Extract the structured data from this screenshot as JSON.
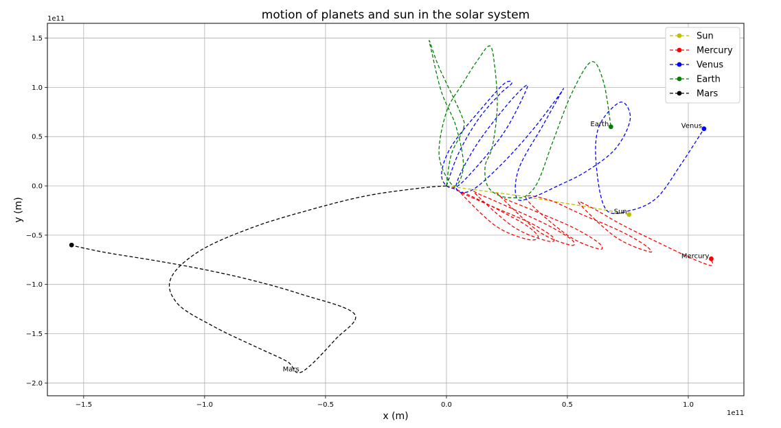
{
  "chart_data": {
    "type": "line",
    "title": "motion of planets and sun in the solar system",
    "xlabel": "x (m)",
    "ylabel": "y (m)",
    "x_offset_text": "1e11",
    "y_offset_text": "1e11",
    "xlim": [
      -1.65,
      1.23
    ],
    "ylim": [
      -2.13,
      1.65
    ],
    "xticks": [
      -1.5,
      -1.0,
      -0.5,
      0.0,
      0.5,
      1.0
    ],
    "xtick_labels": [
      "−1.5",
      "−1.0",
      "−0.5",
      "0.0",
      "0.5",
      "1.0"
    ],
    "yticks": [
      -2.0,
      -1.5,
      -1.0,
      -0.5,
      0.0,
      0.5,
      1.0,
      1.5
    ],
    "ytick_labels": [
      "−2.0",
      "−1.5",
      "−1.0",
      "−0.5",
      "0.0",
      "0.5",
      "1.0",
      "1.5"
    ],
    "grid": true,
    "legend_position": "top-right",
    "series": [
      {
        "name": "Sun",
        "color": "#bfbf00",
        "x": [
          0.0,
          0.15,
          0.3,
          0.45,
          0.6,
          0.755
        ],
        "y": [
          0.0,
          -0.05,
          -0.1,
          -0.16,
          -0.22,
          -0.29
        ]
      },
      {
        "name": "Mercury",
        "color": "#ff0000",
        "x": [
          0.0,
          0.1,
          0.22,
          0.33,
          0.38,
          0.33,
          0.2,
          0.05,
          0.07,
          0.2,
          0.35,
          0.44,
          0.42,
          0.28,
          0.12,
          0.15,
          0.28,
          0.42,
          0.52,
          0.51,
          0.38,
          0.22,
          0.24,
          0.38,
          0.53,
          0.63,
          0.63,
          0.5,
          0.33,
          0.42,
          0.56,
          0.72,
          0.82,
          0.84,
          0.7,
          0.55,
          0.6,
          0.73,
          0.88,
          1.0,
          1.08,
          1.1,
          1.095
        ],
        "y": [
          0.0,
          -0.1,
          -0.25,
          -0.4,
          -0.52,
          -0.54,
          -0.4,
          -0.05,
          -0.08,
          -0.22,
          -0.38,
          -0.52,
          -0.56,
          -0.42,
          -0.08,
          -0.1,
          -0.24,
          -0.4,
          -0.55,
          -0.6,
          -0.46,
          -0.1,
          -0.13,
          -0.27,
          -0.43,
          -0.58,
          -0.64,
          -0.5,
          -0.13,
          -0.14,
          -0.29,
          -0.46,
          -0.6,
          -0.67,
          -0.52,
          -0.18,
          -0.22,
          -0.4,
          -0.58,
          -0.72,
          -0.8,
          -0.8,
          -0.74
        ]
      },
      {
        "name": "Venus",
        "color": "#0000ff",
        "x": [
          0.0,
          0.05,
          0.13,
          0.22,
          0.27,
          0.24,
          0.15,
          0.02,
          -0.02,
          0.03,
          0.12,
          0.24,
          0.32,
          0.33,
          0.25,
          0.12,
          0.04,
          0.1,
          0.22,
          0.35,
          0.46,
          0.48,
          0.4,
          0.3,
          0.29,
          0.35,
          0.46,
          0.58,
          0.7,
          0.76,
          0.72,
          0.63,
          0.62,
          0.66,
          0.76,
          0.87,
          0.97,
          1.065
        ],
        "y": [
          0.0,
          0.33,
          0.67,
          0.93,
          1.04,
          1.04,
          0.8,
          0.4,
          0.1,
          -0.02,
          0.18,
          0.55,
          0.92,
          1.02,
          0.82,
          0.4,
          0.0,
          -0.05,
          0.2,
          0.55,
          0.9,
          0.97,
          0.62,
          0.18,
          -0.12,
          -0.12,
          0.0,
          0.15,
          0.38,
          0.68,
          0.85,
          0.6,
          0.2,
          -0.24,
          -0.25,
          -0.12,
          0.22,
          0.58
        ]
      },
      {
        "name": "Earth",
        "color": "#008000",
        "x": [
          0.0,
          0.02,
          0.07,
          0.06,
          -0.03,
          -0.07,
          -0.06,
          -0.02,
          0.04,
          0.07,
          0.03,
          -0.03,
          0.0,
          0.07,
          0.13,
          0.18,
          0.2,
          0.21,
          0.19,
          0.16,
          0.17,
          0.22,
          0.28,
          0.33,
          0.38,
          0.44,
          0.52,
          0.6,
          0.65,
          0.68
        ],
        "y": [
          0.0,
          0.32,
          0.58,
          0.73,
          1.2,
          1.47,
          1.35,
          0.95,
          0.6,
          0.2,
          0.0,
          0.3,
          0.75,
          1.05,
          1.28,
          1.42,
          1.2,
          0.8,
          0.4,
          0.2,
          0.0,
          -0.1,
          -0.12,
          -0.1,
          0.05,
          0.45,
          0.95,
          1.26,
          1.05,
          0.6
        ]
      },
      {
        "name": "Mars",
        "color": "#000000",
        "x": [
          0.0,
          -0.1,
          -0.33,
          -0.56,
          -0.8,
          -1.02,
          -1.14,
          -1.11,
          -0.96,
          -0.8,
          -0.66,
          -0.6,
          -0.46,
          -0.38,
          -0.6,
          -0.8,
          -1.0,
          -1.2,
          -1.4,
          -1.52,
          -1.55
        ],
        "y": [
          0.0,
          -0.02,
          -0.1,
          -0.24,
          -0.42,
          -0.66,
          -0.94,
          -1.2,
          -1.43,
          -1.62,
          -1.78,
          -1.89,
          -1.56,
          -1.3,
          -1.1,
          -0.96,
          -0.85,
          -0.76,
          -0.68,
          -0.62,
          -0.6
        ]
      }
    ],
    "annotations": [
      {
        "text": "Sun",
        "x": 0.755,
        "y": -0.29
      },
      {
        "text": "Mercury",
        "x": 1.095,
        "y": -0.74
      },
      {
        "text": "Venus",
        "x": 1.065,
        "y": 0.58
      },
      {
        "text": "Earth",
        "x": 0.68,
        "y": 0.6
      },
      {
        "text": "Mars",
        "x": -0.6,
        "y": -1.89
      }
    ]
  }
}
